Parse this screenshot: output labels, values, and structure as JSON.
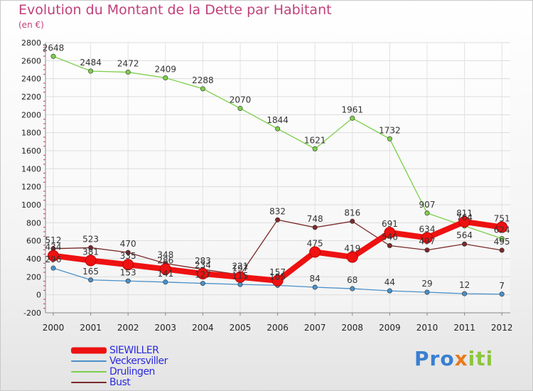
{
  "title": "Evolution du Montant de la Dette par Habitant",
  "subtitle": "(en €)",
  "logo": {
    "part1": "Pro",
    "part2": "x",
    "part3": "iti"
  },
  "chart_data": {
    "type": "line",
    "title": "Evolution du Montant de la Dette par Habitant",
    "subtitle": "(en €)",
    "xlabel": "",
    "ylabel": "",
    "x": [
      "2000",
      "2001",
      "2002",
      "2003",
      "2004",
      "2005",
      "2006",
      "2007",
      "2008",
      "2009",
      "2010",
      "2011",
      "2012"
    ],
    "ylim": [
      -200,
      2800
    ],
    "yticks": [
      -200,
      0,
      200,
      400,
      600,
      800,
      1000,
      1200,
      1400,
      1600,
      1800,
      2000,
      2200,
      2400,
      2600,
      2800
    ],
    "grid": true,
    "legend_position": "bottom-left",
    "series": [
      {
        "name": "SIEWILLER",
        "color": "#ee1111",
        "emphasis": true,
        "values": [
          434,
          381,
          335,
          286,
          234,
          197,
          157,
          475,
          419,
          691,
          634,
          811,
          751
        ],
        "labels": [
          "434",
          "381",
          "335",
          "286",
          "234",
          "197",
          "157",
          "475",
          "419",
          "691",
          "634",
          "811",
          "751"
        ]
      },
      {
        "name": "Veckersviller",
        "color": "#4a90c8",
        "values": [
          296,
          165,
          153,
          141,
          127,
          115,
          105,
          84,
          68,
          44,
          29,
          12,
          7
        ],
        "labels": [
          "296",
          "165",
          "153",
          "141",
          "127",
          "115",
          "105",
          "84",
          "68",
          "44",
          "29",
          "12",
          "7"
        ]
      },
      {
        "name": "Drulingen",
        "color": "#7ccf4a",
        "values": [
          2648,
          2484,
          2472,
          2409,
          2288,
          2070,
          1844,
          1621,
          1961,
          1732,
          907,
          764,
          624
        ],
        "labels": [
          "2648",
          "2484",
          "2472",
          "2409",
          "2288",
          "2070",
          "1844",
          "1621",
          "1961",
          "1732",
          "907",
          "764",
          "624"
        ]
      },
      {
        "name": "Bust",
        "color": "#7a2a2a",
        "values": [
          512,
          523,
          470,
          348,
          283,
          221,
          832,
          748,
          816,
          546,
          497,
          564,
          495
        ],
        "labels": [
          "512",
          "523",
          "470",
          "348",
          "283",
          "221",
          "832",
          "748",
          "816",
          "546",
          "497",
          "564",
          "495"
        ]
      }
    ]
  }
}
